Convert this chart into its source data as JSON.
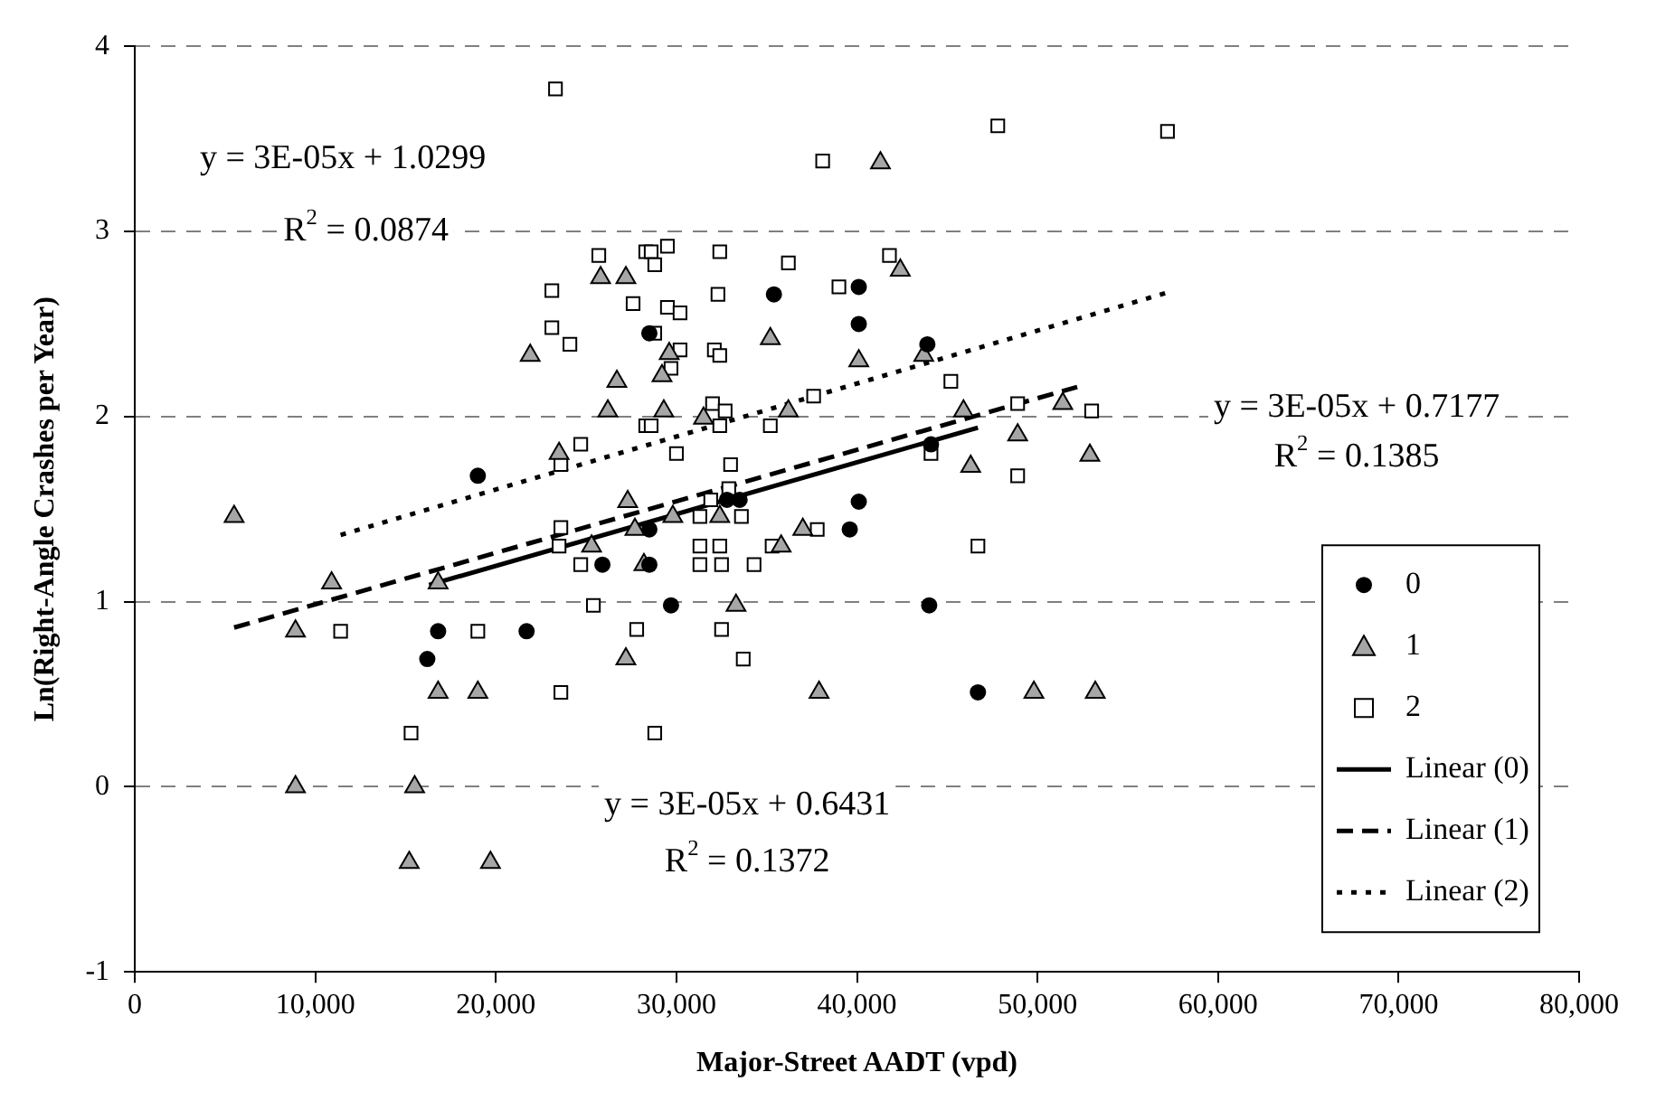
{
  "chart_data": {
    "type": "scatter",
    "xlabel": "Major-Street AADT (vpd)",
    "ylabel": "Ln(Right-Angle Crashes per Year)",
    "xlim": [
      0,
      80000
    ],
    "xticks": [
      {
        "value": 0,
        "label": "0"
      },
      {
        "value": 10000,
        "label": "10,000"
      },
      {
        "value": 20000,
        "label": "20,000"
      },
      {
        "value": 30000,
        "label": "30,000"
      },
      {
        "value": 40000,
        "label": "40,000"
      },
      {
        "value": 50000,
        "label": "50,000"
      },
      {
        "value": 60000,
        "label": "60,000"
      },
      {
        "value": 70000,
        "label": "70,000"
      },
      {
        "value": 80000,
        "label": "80,000"
      }
    ],
    "ylim": [
      -1,
      4
    ],
    "yticks": [
      -1,
      0,
      1,
      2,
      3,
      4
    ],
    "grid": "y",
    "legend": "bottom right",
    "series": [
      {
        "name": "0",
        "marker": "circle",
        "color": "#000000",
        "x": [
          19000,
          16800,
          16200,
          21700,
          35400,
          40100,
          40100,
          43900,
          44100,
          40100,
          28500,
          32800,
          33500,
          39600,
          28500,
          25900,
          28500,
          29700,
          44000,
          46700
        ],
        "values": [
          1.68,
          0.84,
          0.69,
          0.84,
          2.66,
          2.7,
          2.5,
          2.39,
          1.85,
          1.54,
          2.45,
          1.55,
          1.55,
          1.39,
          1.39,
          1.2,
          1.2,
          0.98,
          0.98,
          0.51
        ]
      },
      {
        "name": "1",
        "marker": "triangle",
        "color": "#a6a6a6",
        "x": [
          5500,
          10900,
          8900,
          16800,
          16800,
          19000,
          8900,
          15500,
          15200,
          19700,
          27200,
          27300,
          25300,
          28200,
          21900,
          25800,
          27200,
          26700,
          26200,
          23500,
          29300,
          29200,
          29600,
          35200,
          40100,
          42400,
          41300,
          43700,
          36200,
          45900,
          48900,
          51400,
          52900,
          46300,
          31500,
          32400,
          29800,
          27700,
          37000,
          35800,
          33300,
          37900,
          49800,
          53200
        ],
        "values": [
          1.46,
          1.1,
          0.84,
          1.1,
          0.51,
          0.51,
          0,
          0,
          -0.41,
          -0.41,
          0.69,
          1.54,
          1.3,
          1.2,
          2.33,
          2.75,
          2.75,
          2.19,
          2.03,
          1.8,
          2.03,
          2.22,
          2.34,
          2.42,
          2.3,
          2.79,
          3.37,
          2.33,
          2.03,
          2.03,
          1.9,
          2.07,
          1.79,
          1.73,
          1.99,
          1.46,
          1.46,
          1.39,
          1.39,
          1.3,
          0.98,
          0.51,
          0.51,
          0.51
        ]
      },
      {
        "name": "2",
        "marker": "square",
        "color": "#000000",
        "x": [
          23300,
          25700,
          28300,
          23100,
          27600,
          23100,
          24100,
          24700,
          23600,
          28300,
          28600,
          29500,
          28800,
          32400,
          36200,
          41800,
          38100,
          47800,
          29500,
          30200,
          32300,
          39000,
          28800,
          30200,
          32100,
          32400,
          29700,
          45200,
          37600,
          32000,
          32700,
          48900,
          53000,
          28600,
          32400,
          35200,
          30000,
          33000,
          44100,
          48900,
          32900,
          31900,
          57200,
          23600,
          23500,
          24700,
          31300,
          33600,
          31300,
          32400,
          31300,
          32500,
          34300,
          35300,
          37800,
          46700,
          25400,
          27800,
          32500,
          33700,
          23600,
          28800,
          11400,
          19000,
          15300
        ],
        "values": [
          3.77,
          2.87,
          2.89,
          2.68,
          2.61,
          2.48,
          2.39,
          1.85,
          1.74,
          1.95,
          2.89,
          2.92,
          2.82,
          2.89,
          2.83,
          2.87,
          3.38,
          3.57,
          2.59,
          2.56,
          2.66,
          2.7,
          2.45,
          2.36,
          2.36,
          2.33,
          2.26,
          2.19,
          2.11,
          2.07,
          2.03,
          2.07,
          2.03,
          1.95,
          1.95,
          1.95,
          1.8,
          1.74,
          1.8,
          1.68,
          1.61,
          1.55,
          3.54,
          1.4,
          1.3,
          1.2,
          1.46,
          1.46,
          1.3,
          1.3,
          1.2,
          1.2,
          1.2,
          1.3,
          1.39,
          1.3,
          0.98,
          0.85,
          0.85,
          0.69,
          0.51,
          0.29,
          0.84,
          0.84,
          0.29
        ]
      },
      {
        "name": "Linear (0)",
        "type": "line",
        "marker": "none",
        "line_style": "solid",
        "color": "#000000",
        "x": [
          16300,
          46700
        ],
        "values": [
          1.09,
          1.94
        ]
      },
      {
        "name": "Linear (1)",
        "type": "line",
        "marker": "none",
        "line_style": "dashed",
        "color": "#000000",
        "x": [
          5500,
          52200
        ],
        "values": [
          0.86,
          2.16
        ]
      },
      {
        "name": "Linear (2)",
        "type": "line",
        "marker": "none",
        "line_style": "dotted",
        "color": "#000000",
        "x": [
          11400,
          57200
        ],
        "values": [
          1.36,
          2.67
        ]
      }
    ],
    "annotations": [
      "y = 3E-05x + 1.0299",
      "R$^{2}$ = 0.0874",
      "y = 3E-05x + 0.7177",
      "R$^{2}$ = 0.1385",
      "y = 3E-05x + 0.6431",
      "R$^{2}$ = 0.1372"
    ]
  }
}
